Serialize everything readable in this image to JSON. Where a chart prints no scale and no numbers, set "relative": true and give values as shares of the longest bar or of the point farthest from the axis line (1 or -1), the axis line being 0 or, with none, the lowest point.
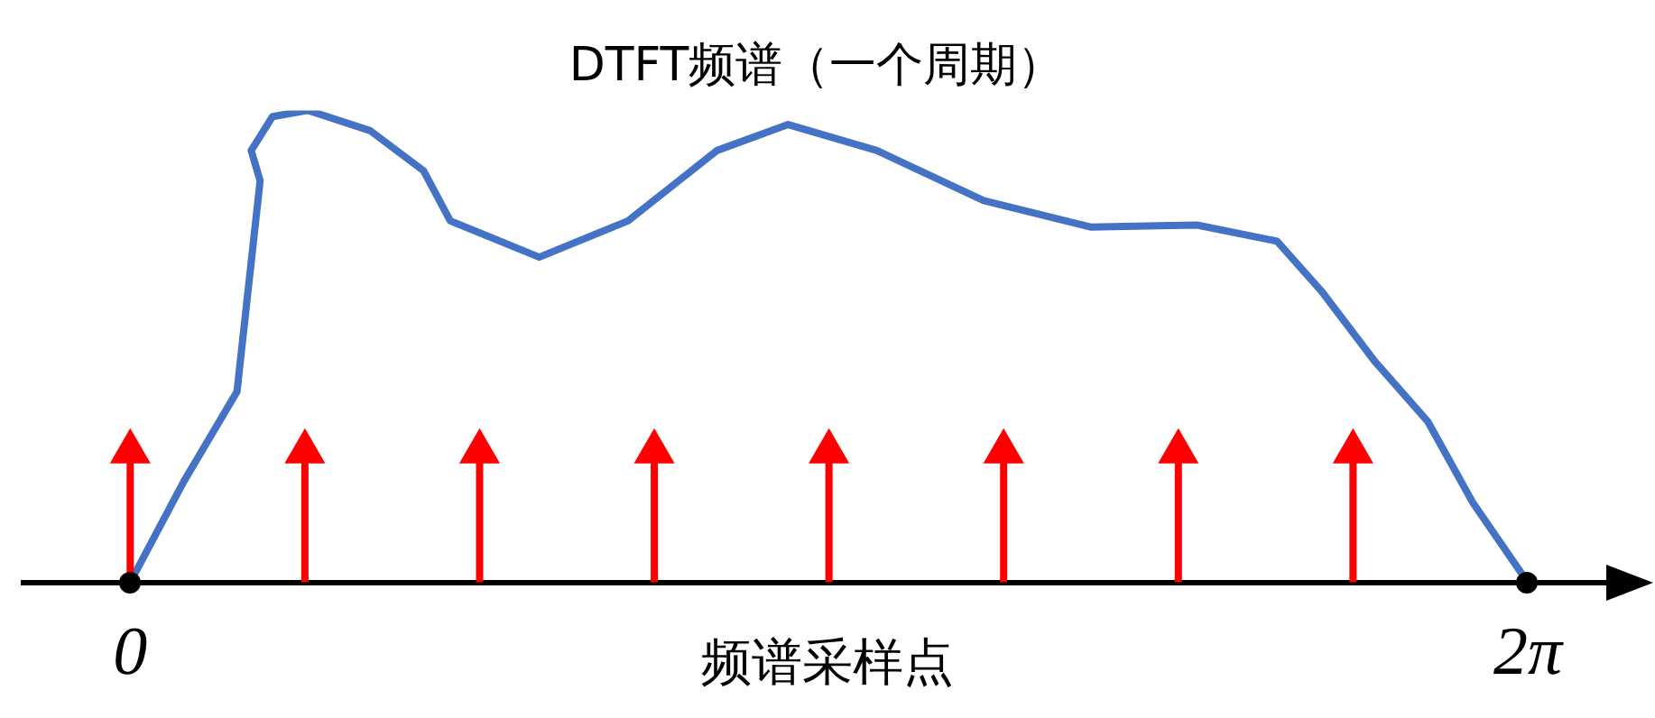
{
  "chart_data": {
    "type": "line",
    "title": "DTFT频谱（一个周期）",
    "xlabel": "频谱采样点",
    "relative": true,
    "xlim": [
      -0.48,
      6.75
    ],
    "xticks": [
      {
        "value": 0,
        "label": "0"
      },
      {
        "value": 6.2832,
        "label": "2π"
      }
    ],
    "tick_labels": "x",
    "grid": false,
    "legend": false,
    "marker": "none",
    "series": [
      {
        "color": "#4472c4",
        "x": [
          0,
          0.24,
          0.48,
          0.584,
          0.544,
          0.64,
          0.8,
          1.079,
          1.319,
          1.439,
          1.839,
          2.238,
          2.638,
          2.958,
          3.357,
          3.837,
          4.317,
          4.796,
          5.156,
          5.356,
          5.596,
          5.835,
          6.035,
          6.2832
        ],
        "values": [
          0,
          0.213,
          0.404,
          0.851,
          0.915,
          0.987,
          1,
          0.957,
          0.872,
          0.766,
          0.689,
          0.766,
          0.915,
          0.97,
          0.915,
          0.809,
          0.753,
          0.757,
          0.723,
          0.617,
          0.468,
          0.34,
          0.17,
          0
        ]
      },
      {
        "type": "lollipop",
        "color": "#ff0000",
        "marker": "triangle",
        "x": [
          0,
          0.7854,
          1.5708,
          2.3562,
          3.1416,
          3.927,
          4.7124,
          5.4978
        ],
        "values": [
          0.277,
          0.277,
          0.277,
          0.277,
          0.277,
          0.277,
          0.277,
          0.277
        ]
      }
    ]
  }
}
